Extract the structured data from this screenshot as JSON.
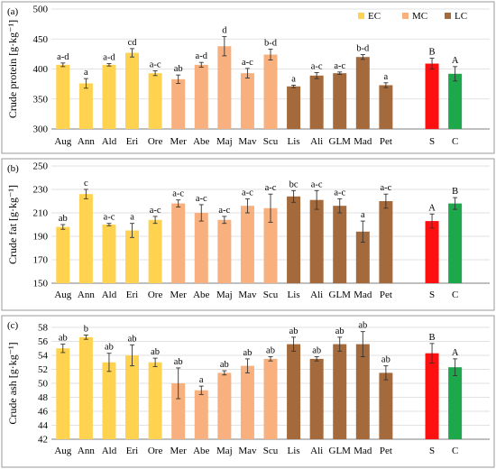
{
  "colors": {
    "EC": "#FFD34F",
    "MC": "#F7B07E",
    "LC": "#A56A3C",
    "S": "#FF1010",
    "C": "#1DA84B",
    "frame": "#9A9A9A",
    "grid": "#D9D9D9",
    "axis": "#7F7F7F",
    "text": "#000000"
  },
  "legend": [
    {
      "key": "EC",
      "label": "EC"
    },
    {
      "key": "MC",
      "label": "MC"
    },
    {
      "key": "LC",
      "label": "LC"
    }
  ],
  "chart_data": [
    {
      "type": "bar",
      "panel_label": "(a)",
      "ylabel": "Crude protein [g·kg⁻¹]",
      "ylim": [
        300,
        500
      ],
      "yticks": [
        300,
        350,
        400,
        450,
        500
      ],
      "grid": true,
      "legend_position": "top-right",
      "categories": [
        "Aug",
        "Ann",
        "Ald",
        "Eri",
        "Ore",
        "Mer",
        "Abe",
        "Maj",
        "Mav",
        "Scu",
        "Lis",
        "Ali",
        "GLM",
        "Mad",
        "Pet",
        "S",
        "C"
      ],
      "groups": [
        "EC",
        "EC",
        "EC",
        "EC",
        "EC",
        "MC",
        "MC",
        "MC",
        "MC",
        "MC",
        "LC",
        "LC",
        "LC",
        "LC",
        "LC",
        "S",
        "C"
      ],
      "values": [
        407,
        376,
        407,
        427,
        393,
        383,
        407,
        438,
        393,
        424,
        371,
        389,
        393,
        420,
        373,
        409,
        392
      ],
      "errors": [
        3,
        8,
        2,
        7,
        4,
        7,
        4,
        16,
        8,
        9,
        2,
        5,
        2,
        4,
        4,
        9,
        12
      ],
      "labels": [
        "a-d",
        "a",
        "a-d",
        "cd",
        "a-c",
        "ab",
        "a-d",
        "d",
        "a-c",
        "b-d",
        "a",
        "a-c",
        "a-c",
        "b-d",
        "a",
        "B",
        "A"
      ]
    },
    {
      "type": "bar",
      "panel_label": "(b)",
      "ylabel": "Crude fat [g·kg⁻¹]",
      "ylim": [
        150,
        250
      ],
      "yticks": [
        150,
        170,
        190,
        210,
        230,
        250
      ],
      "grid": true,
      "categories": [
        "Aug",
        "Ann",
        "Ald",
        "Eri",
        "Ore",
        "Mer",
        "Abe",
        "Maj",
        "Mav",
        "Scu",
        "Lis",
        "Ali",
        "GLM",
        "Mad",
        "Pet",
        "S",
        "C"
      ],
      "groups": [
        "EC",
        "EC",
        "EC",
        "EC",
        "EC",
        "MC",
        "MC",
        "MC",
        "MC",
        "MC",
        "LC",
        "LC",
        "LC",
        "LC",
        "LC",
        "S",
        "C"
      ],
      "values": [
        198,
        226,
        200,
        195,
        204,
        218,
        210,
        204,
        216,
        214,
        224,
        221,
        216,
        194,
        220,
        203,
        218
      ],
      "errors": [
        2,
        4,
        1,
        6,
        3,
        3,
        7,
        3,
        6,
        12,
        5,
        8,
        6,
        9,
        6,
        6,
        5
      ],
      "labels": [
        "ab",
        "c",
        "a-c",
        "a",
        "a-c",
        "a-c",
        "a-c",
        "a-c",
        "a-c",
        "a-c",
        "bc",
        "a-c",
        "a-c",
        "a",
        "a-c",
        "A",
        "B"
      ]
    },
    {
      "type": "bar",
      "panel_label": "(c)",
      "ylabel": "Crude ash [g·kg⁻¹]",
      "ylim": [
        42,
        58
      ],
      "yticks": [
        42,
        44,
        46,
        48,
        50,
        52,
        54,
        56,
        58
      ],
      "grid": true,
      "categories": [
        "Aug",
        "Ann",
        "Ald",
        "Eri",
        "Ore",
        "Mer",
        "Abe",
        "Maj",
        "Mav",
        "Scu",
        "Lis",
        "Ali",
        "GLM",
        "Mad",
        "Pet",
        "S",
        "C"
      ],
      "groups": [
        "EC",
        "EC",
        "EC",
        "EC",
        "EC",
        "MC",
        "MC",
        "MC",
        "MC",
        "MC",
        "LC",
        "LC",
        "LC",
        "LC",
        "LC",
        "S",
        "C"
      ],
      "values": [
        55.0,
        56.6,
        53.0,
        54.0,
        53.0,
        50.0,
        49.0,
        51.5,
        52.5,
        53.5,
        55.6,
        53.5,
        55.6,
        55.6,
        51.5,
        54.3,
        52.3
      ],
      "errors": [
        0.6,
        0.3,
        1.3,
        1.5,
        0.6,
        2.2,
        0.6,
        0.3,
        1.0,
        0.3,
        1.0,
        0.3,
        1.0,
        1.8,
        1.0,
        1.4,
        1.2
      ],
      "labels": [
        "ab",
        "b",
        "ab",
        "ab",
        "ab",
        "ab",
        "a",
        "ab",
        "ab",
        "ab",
        "ab",
        "ab",
        "ab",
        "ab",
        "ab",
        "B",
        "A"
      ]
    }
  ]
}
